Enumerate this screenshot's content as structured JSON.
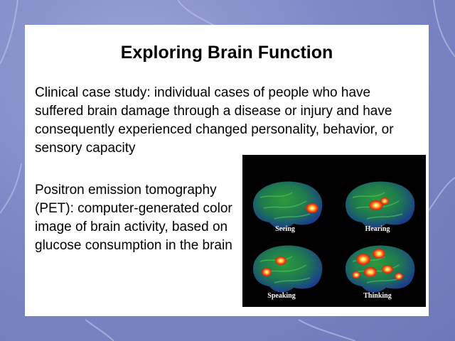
{
  "slide": {
    "title": "Exploring Brain Function",
    "paragraph1": "Clinical case study: individual cases of people who have suffered brain damage through a disease or injury and have consequently experienced changed personality, behavior, or sensory capacity",
    "paragraph2": "Positron emission tomography (PET): computer-generated color image of brain activity, based on glucose consumption in the brain"
  },
  "pet_image": {
    "captions": [
      "Seeing",
      "Hearing",
      "Speaking",
      "Thinking"
    ]
  }
}
